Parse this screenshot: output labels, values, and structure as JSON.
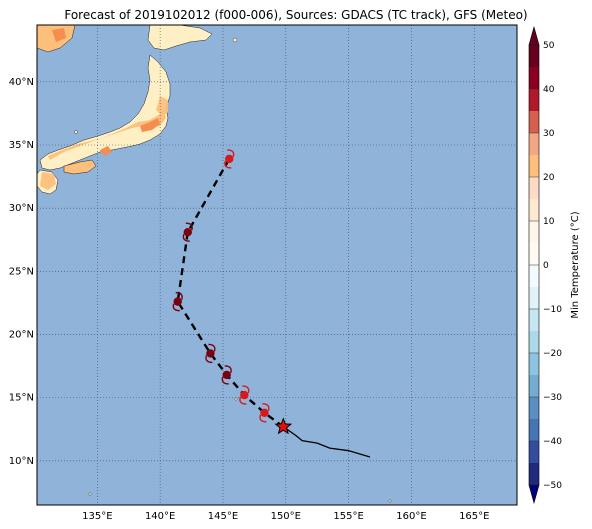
{
  "title": "Forecast of 2019102012 (f000-006), Sources: GDACS (TC track), GFS (Meteo)",
  "map": {
    "ocean_color": "#8fb3d9",
    "land_colors": {
      "warm": "#fef0c4",
      "orange": "#fdbf7c",
      "dark_orange": "#f58c50"
    },
    "grid": "dotted",
    "lon_ticks": [
      "135°E",
      "140°E",
      "145°E",
      "150°E",
      "155°E",
      "160°E",
      "165°E"
    ],
    "lat_ticks": [
      "10°N",
      "15°N",
      "20°N",
      "25°N",
      "30°N",
      "35°N",
      "40°N"
    ]
  },
  "track": {
    "forecast_points": [
      {
        "lon": 145.5,
        "lat": 33.9,
        "color": "#d7191c"
      },
      {
        "lon": 142.2,
        "lat": 28.1,
        "color": "#7a0010"
      },
      {
        "lon": 141.4,
        "lat": 22.6,
        "color": "#7a0010"
      },
      {
        "lon": 144.0,
        "lat": 18.5,
        "color": "#7a0010"
      },
      {
        "lon": 145.3,
        "lat": 16.8,
        "color": "#7a0010"
      },
      {
        "lon": 146.7,
        "lat": 15.2,
        "color": "#d7191c"
      },
      {
        "lon": 148.3,
        "lat": 13.8,
        "color": "#d7191c"
      }
    ],
    "current_position": {
      "lon": 149.8,
      "lat": 12.7
    },
    "past_track": [
      {
        "lon": 149.8,
        "lat": 12.7
      },
      {
        "lon": 150.8,
        "lat": 12.0
      },
      {
        "lon": 151.3,
        "lat": 11.6
      },
      {
        "lon": 152.5,
        "lat": 11.4
      },
      {
        "lon": 153.5,
        "lat": 11.0
      },
      {
        "lon": 155.0,
        "lat": 10.8
      },
      {
        "lon": 156.7,
        "lat": 10.3
      }
    ]
  },
  "colorbar": {
    "label": "Min Temperature (°C)",
    "ticks": [
      "50",
      "40",
      "30",
      "20",
      "10",
      "0",
      "−10",
      "−20",
      "−30",
      "−40",
      "−50"
    ],
    "colors": [
      "#67001f",
      "#a50026",
      "#d7301f",
      "#f46d43",
      "#fdae61",
      "#fee090",
      "#ffffcc",
      "#f7fbff",
      "#e0f3f8",
      "#abd9e9",
      "#74add1",
      "#4575b4",
      "#313695",
      "#1a1a8c"
    ]
  }
}
